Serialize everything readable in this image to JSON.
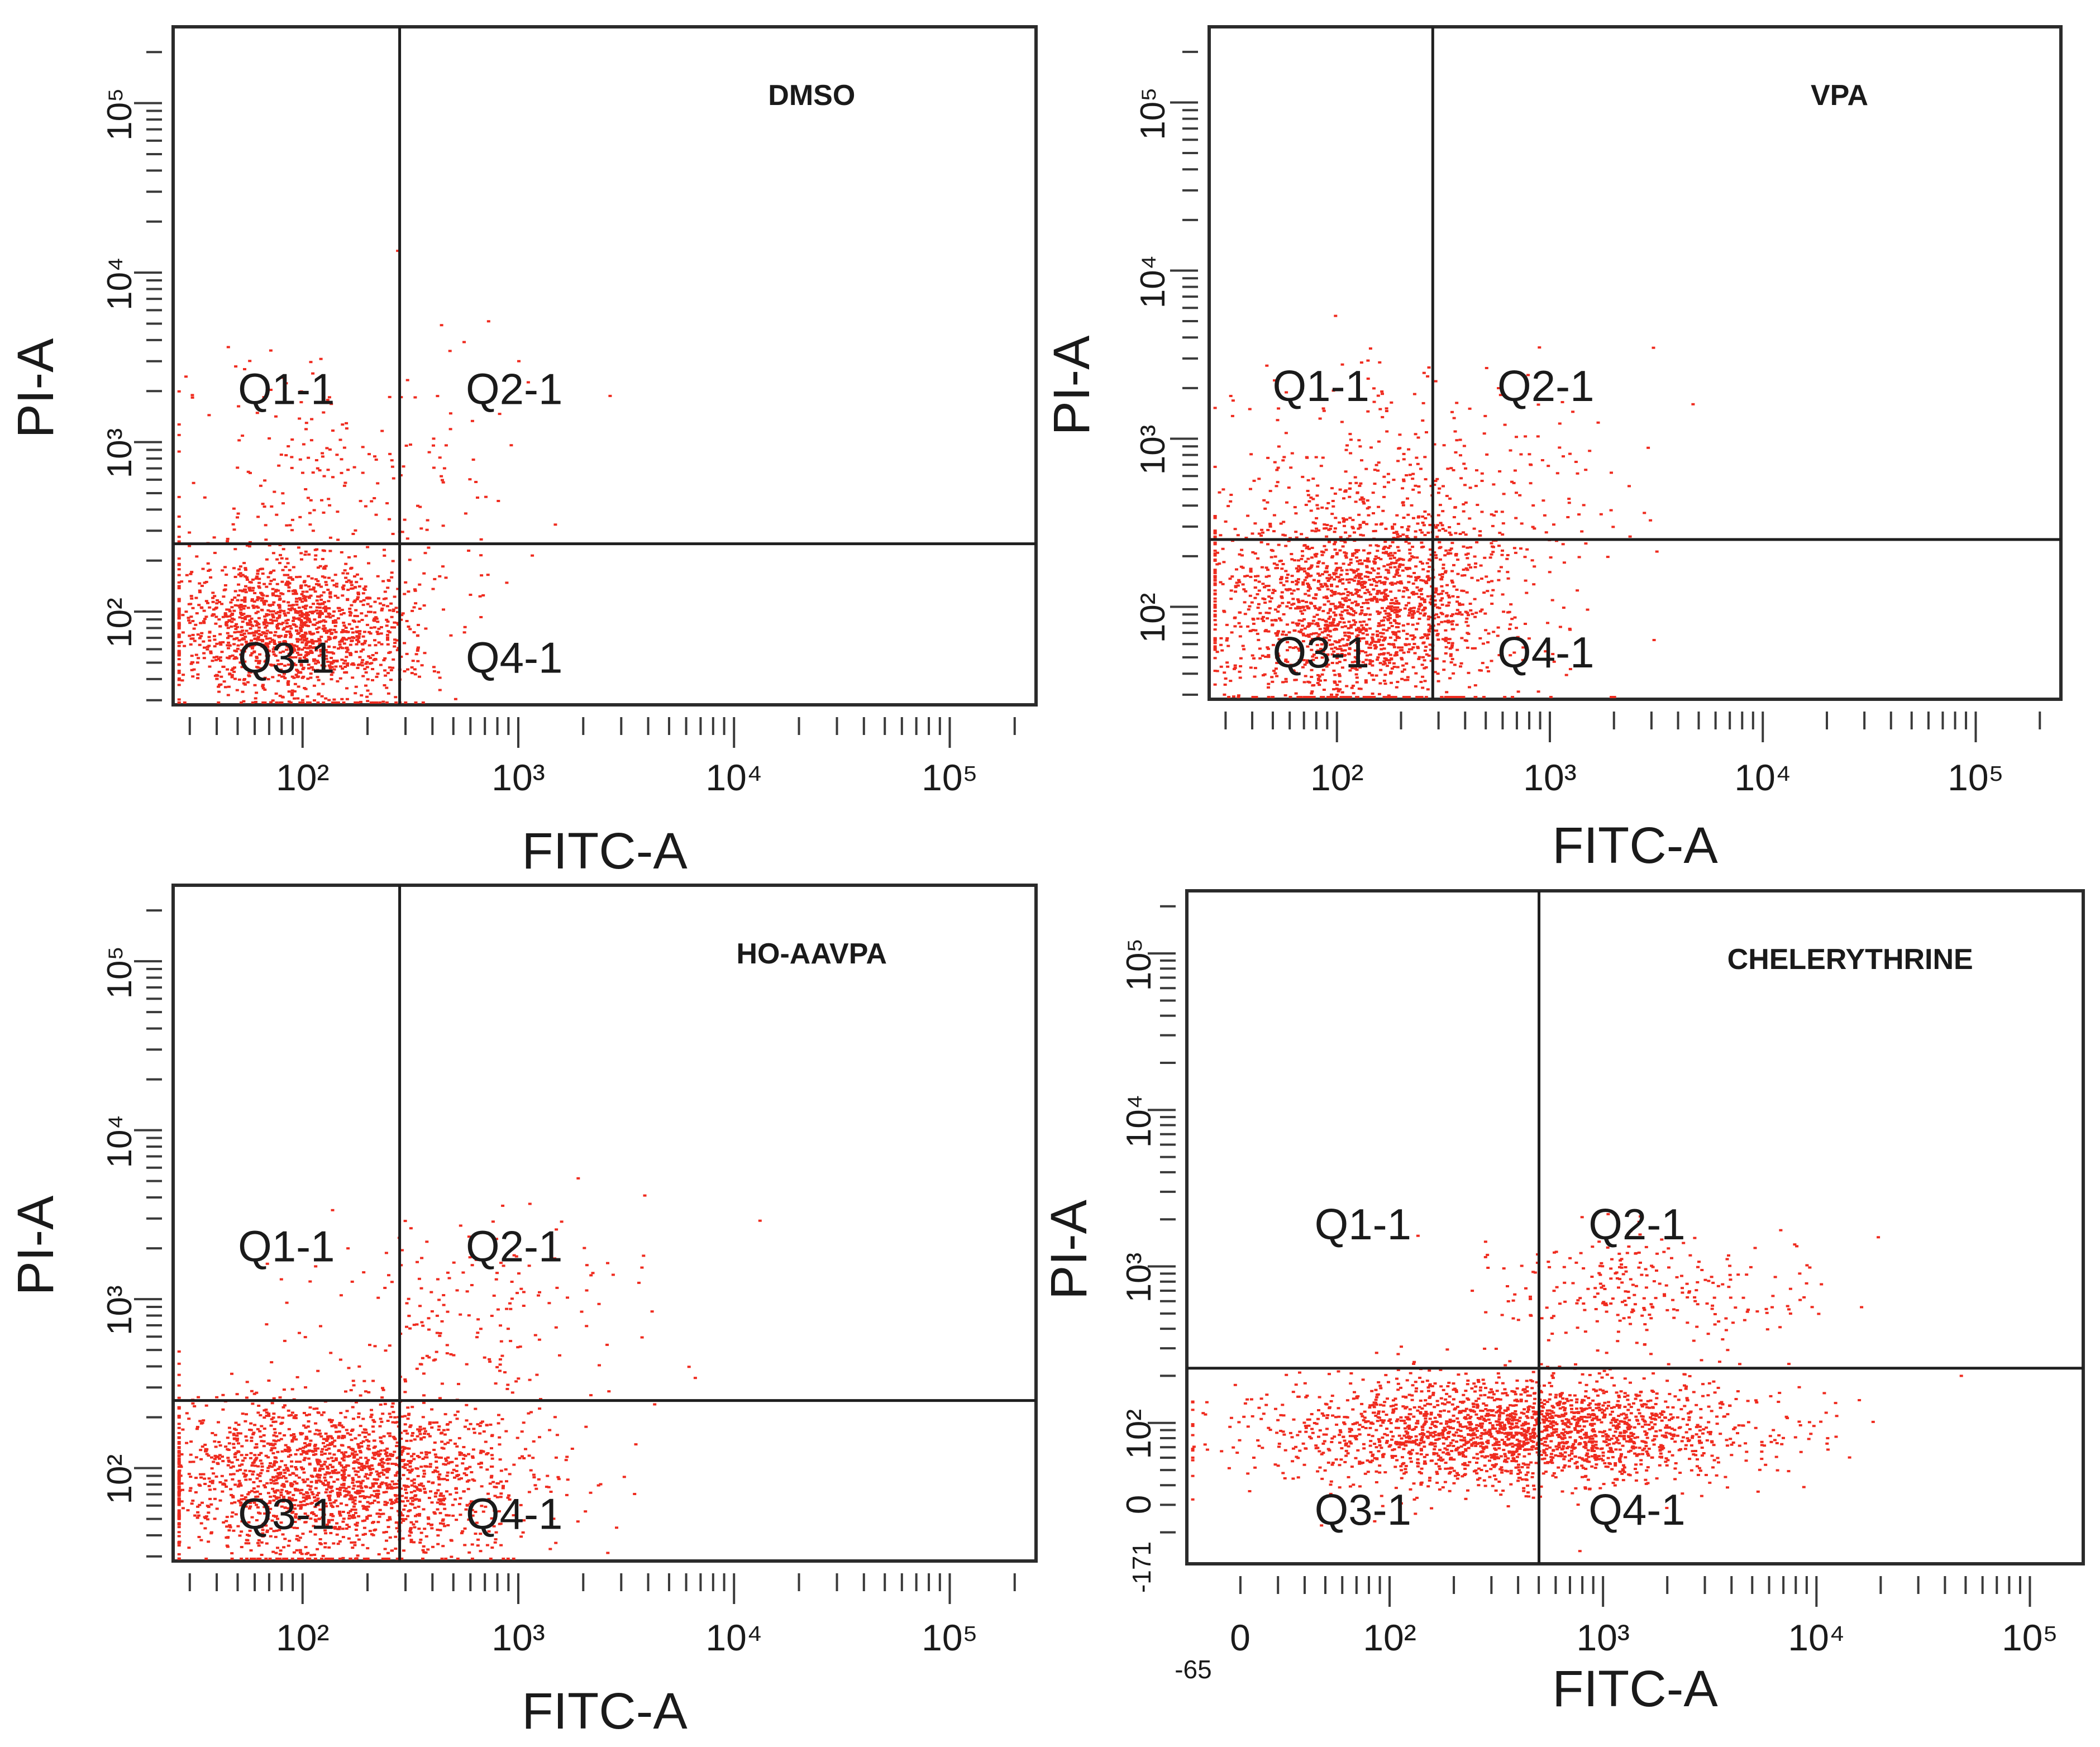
{
  "figure": {
    "colors": {
      "dots": "#ef2b1f",
      "frame": "#2b2b2b",
      "background": "#ffffff"
    }
  },
  "chart_data": [
    {
      "type": "scatter",
      "title": "DMSO",
      "xlabel": "FITC-A",
      "ylabel": "PI-A",
      "x_tick_labels": [
        "10²",
        "10³",
        "10⁴",
        "10⁵"
      ],
      "y_tick_labels": [
        "10²",
        "10³",
        "10⁴",
        "10⁵"
      ],
      "x_range_log10": [
        1.4,
        5.4
      ],
      "y_range_log10": [
        1.45,
        5.45
      ],
      "gate": {
        "x_log10": 2.45,
        "y_log10": 2.4
      },
      "quadrants": [
        "Q1-1",
        "Q2-1",
        "Q3-1",
        "Q4-1"
      ],
      "populations": [
        {
          "cx_log10": 1.95,
          "cy_log10": 1.9,
          "sx": 0.28,
          "sy": 0.22,
          "n": 1500
        },
        {
          "cx_log10": 2.15,
          "cy_log10": 2.8,
          "sx": 0.45,
          "sy": 0.45,
          "n": 220
        }
      ]
    },
    {
      "type": "scatter",
      "title": "VPA",
      "xlabel": "FITC-A",
      "ylabel": "PI-A",
      "x_tick_labels": [
        "10²",
        "10³",
        "10⁴",
        "10⁵"
      ],
      "y_tick_labels": [
        "10²",
        "10³",
        "10⁴",
        "10⁵"
      ],
      "x_range_log10": [
        1.4,
        5.4
      ],
      "y_range_log10": [
        1.45,
        5.45
      ],
      "gate": {
        "x_log10": 2.45,
        "y_log10": 2.4
      },
      "quadrants": [
        "Q1-1",
        "Q2-1",
        "Q3-1",
        "Q4-1"
      ],
      "populations": [
        {
          "cx_log10": 2.1,
          "cy_log10": 2.0,
          "sx": 0.35,
          "sy": 0.3,
          "n": 1800
        },
        {
          "cx_log10": 2.4,
          "cy_log10": 2.7,
          "sx": 0.45,
          "sy": 0.35,
          "n": 350
        }
      ]
    },
    {
      "type": "scatter",
      "title": "HO-AAVPA",
      "xlabel": "FITC-A",
      "ylabel": "PI-A",
      "x_tick_labels": [
        "10²",
        "10³",
        "10⁴",
        "10⁵"
      ],
      "y_tick_labels": [
        "10²",
        "10³",
        "10⁴",
        "10⁵"
      ],
      "x_range_log10": [
        1.4,
        5.4
      ],
      "y_range_log10": [
        1.45,
        5.45
      ],
      "gate": {
        "x_log10": 2.45,
        "y_log10": 2.4
      },
      "quadrants": [
        "Q1-1",
        "Q2-1",
        "Q3-1",
        "Q4-1"
      ],
      "populations": [
        {
          "cx_log10": 2.15,
          "cy_log10": 1.95,
          "sx": 0.45,
          "sy": 0.25,
          "n": 2000
        },
        {
          "cx_log10": 2.8,
          "cy_log10": 2.95,
          "sx": 0.4,
          "sy": 0.3,
          "n": 180
        }
      ]
    },
    {
      "type": "scatter",
      "title": "CHELERYTHRINE",
      "xlabel": "FITC-A",
      "ylabel": "PI-A",
      "x_tick_labels": [
        "-65",
        "0",
        "10²",
        "10³",
        "10⁴",
        "10⁵"
      ],
      "y_tick_labels": [
        "-171",
        "0",
        "10²",
        "10³",
        "10⁴",
        "10⁵"
      ],
      "x_range_log10": [
        1.05,
        5.25
      ],
      "y_range_log10": [
        1.1,
        5.4
      ],
      "gate": {
        "x_log10": 2.7,
        "y_log10": 2.35
      },
      "quadrants": [
        "Q1-1",
        "Q2-1",
        "Q3-1",
        "Q4-1"
      ],
      "populations": [
        {
          "cx_log10": 2.55,
          "cy_log10": 1.95,
          "sx": 0.55,
          "sy": 0.17,
          "n": 2200
        },
        {
          "cx_log10": 3.2,
          "cy_log10": 2.85,
          "sx": 0.38,
          "sy": 0.18,
          "n": 260
        }
      ]
    }
  ]
}
